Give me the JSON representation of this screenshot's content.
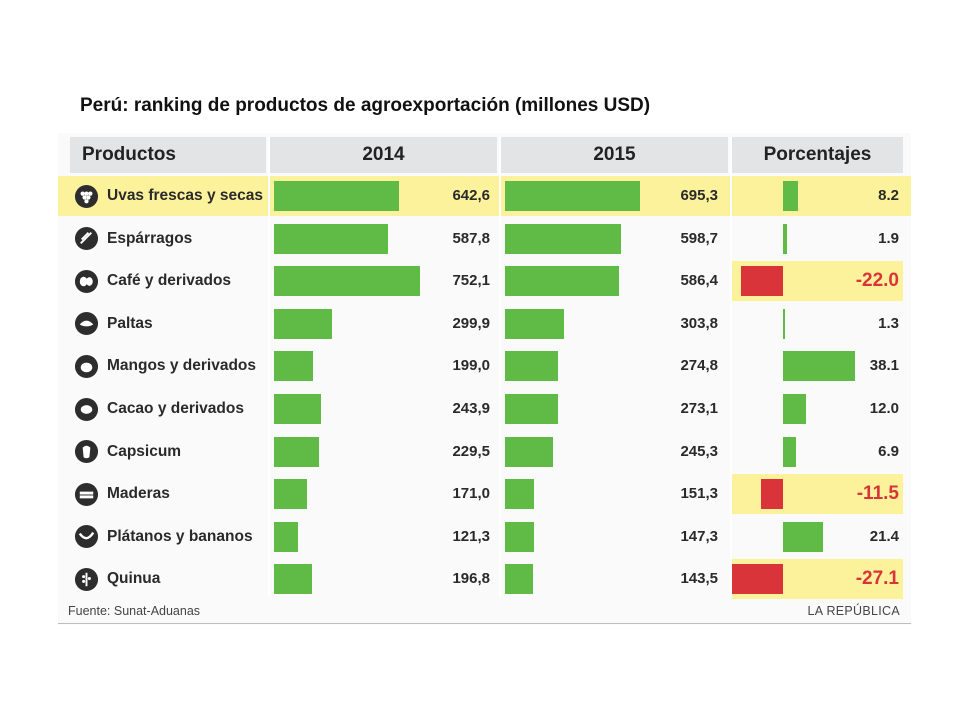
{
  "title": "Perú: ranking de productos de agroexportación (millones USD)",
  "headers": {
    "products": "Productos",
    "y2014": "2014",
    "y2015": "2015",
    "percent": "Porcentajes"
  },
  "footer": {
    "source": "Fuente: Sunat-Aduanas",
    "brand": "LA REPÚBLICA"
  },
  "colors": {
    "bar": "#5fba46",
    "negative": "#d9343a",
    "highlight": "#fcf29c",
    "header": "#e3e4e6"
  },
  "chart_data": {
    "type": "table",
    "columns": [
      "Productos",
      "2014",
      "2015",
      "Porcentajes"
    ],
    "rows": [
      {
        "name": "Uvas frescas y secas",
        "icon": "grapes-icon",
        "v2014": 642.6,
        "v2015": 695.3,
        "pct": 8.2,
        "t2014": "642,6",
        "t2015": "695,3",
        "tpct": "8.2",
        "highlight": true
      },
      {
        "name": "Espárragos",
        "icon": "asparagus-icon",
        "v2014": 587.8,
        "v2015": 598.7,
        "pct": 1.9,
        "t2014": "587,8",
        "t2015": "598,7",
        "tpct": "1.9",
        "highlight": false
      },
      {
        "name": "Café y derivados",
        "icon": "coffee-icon",
        "v2014": 752.1,
        "v2015": 586.4,
        "pct": -22.0,
        "t2014": "752,1",
        "t2015": "586,4",
        "tpct": "-22.0",
        "highlight": false
      },
      {
        "name": "Paltas",
        "icon": "avocado-icon",
        "v2014": 299.9,
        "v2015": 303.8,
        "pct": 1.3,
        "t2014": "299,9",
        "t2015": "303,8",
        "tpct": "1.3",
        "highlight": false
      },
      {
        "name": "Mangos y derivados",
        "icon": "mango-icon",
        "v2014": 199.0,
        "v2015": 274.8,
        "pct": 38.1,
        "t2014": "199,0",
        "t2015": "274,8",
        "tpct": "38.1",
        "highlight": false
      },
      {
        "name": "Cacao y derivados",
        "icon": "cacao-icon",
        "v2014": 243.9,
        "v2015": 273.1,
        "pct": 12.0,
        "t2014": "243,9",
        "t2015": "273,1",
        "tpct": "12.0",
        "highlight": false
      },
      {
        "name": "Capsicum",
        "icon": "pepper-icon",
        "v2014": 229.5,
        "v2015": 245.3,
        "pct": 6.9,
        "t2014": "229,5",
        "t2015": "245,3",
        "tpct": "6.9",
        "highlight": false
      },
      {
        "name": "Maderas",
        "icon": "wood-icon",
        "v2014": 171.0,
        "v2015": 151.3,
        "pct": -11.5,
        "t2014": "171,0",
        "t2015": "151,3",
        "tpct": "-11.5",
        "highlight": false
      },
      {
        "name": "Plátanos y bananos",
        "icon": "banana-icon",
        "v2014": 121.3,
        "v2015": 147.3,
        "pct": 21.4,
        "t2014": "121,3",
        "t2015": "147,3",
        "tpct": "21.4",
        "highlight": false
      },
      {
        "name": "Quinua",
        "icon": "quinoa-icon",
        "v2014": 196.8,
        "v2015": 143.5,
        "pct": -27.1,
        "t2014": "196,8",
        "t2015": "143,5",
        "tpct": "-27.1",
        "highlight": false
      }
    ]
  }
}
